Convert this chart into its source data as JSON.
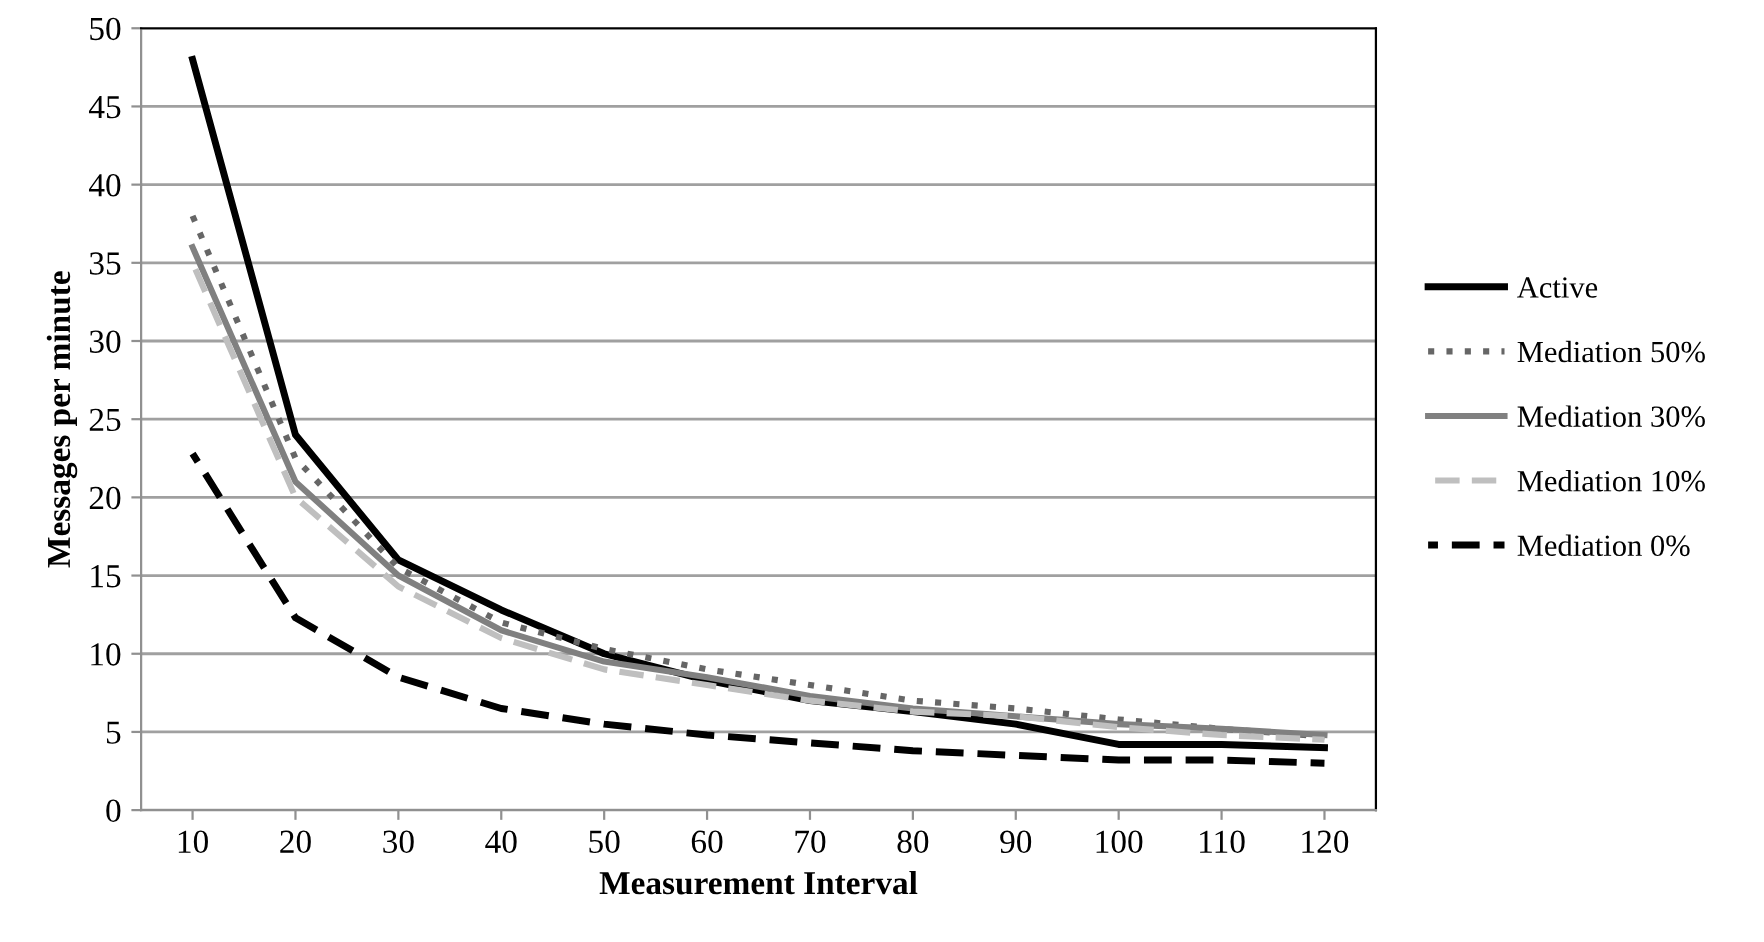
{
  "chart_data": {
    "type": "line",
    "xlabel": "Measurement Interval",
    "ylabel": "Messages per minute",
    "categories": [
      "10",
      "20",
      "30",
      "40",
      "50",
      "60",
      "70",
      "80",
      "90",
      "100",
      "110",
      "120"
    ],
    "ylim": [
      0,
      50
    ],
    "yticks": [
      0,
      5,
      10,
      15,
      20,
      25,
      30,
      35,
      40,
      45,
      50
    ],
    "grid": "y",
    "legend": "right",
    "marker": "none",
    "series": [
      {
        "name": "Active",
        "color": "#000000",
        "line_style": "solid",
        "values": [
          48,
          24,
          16,
          12.8,
          10,
          8.3,
          7,
          6.3,
          5.5,
          4.2,
          4.2,
          4.0
        ]
      },
      {
        "name": "Mediation 50%",
        "color": "#666666",
        "line_style": "dotted",
        "values": [
          38,
          22.5,
          15.5,
          12,
          10.3,
          9,
          8,
          7,
          6.5,
          5.8,
          5.2,
          4.7
        ]
      },
      {
        "name": "Mediation 30%",
        "color": "#808080",
        "line_style": "solid",
        "values": [
          36,
          21,
          15,
          11.5,
          9.5,
          8.5,
          7.3,
          6.5,
          6,
          5.5,
          5.2,
          4.8
        ]
      },
      {
        "name": "Mediation 10%",
        "color": "#bfbfbf",
        "line_style": "dashed",
        "values": [
          35,
          20,
          14.3,
          11,
          9,
          8,
          7,
          6.3,
          6,
          5.3,
          4.8,
          4.5
        ]
      },
      {
        "name": "Mediation 0%",
        "color": "#000000",
        "line_style": "dashed",
        "values": [
          22.8,
          12.3,
          8.5,
          6.5,
          5.5,
          4.8,
          4.3,
          3.8,
          3.5,
          3.2,
          3.2,
          3.0
        ]
      }
    ]
  }
}
